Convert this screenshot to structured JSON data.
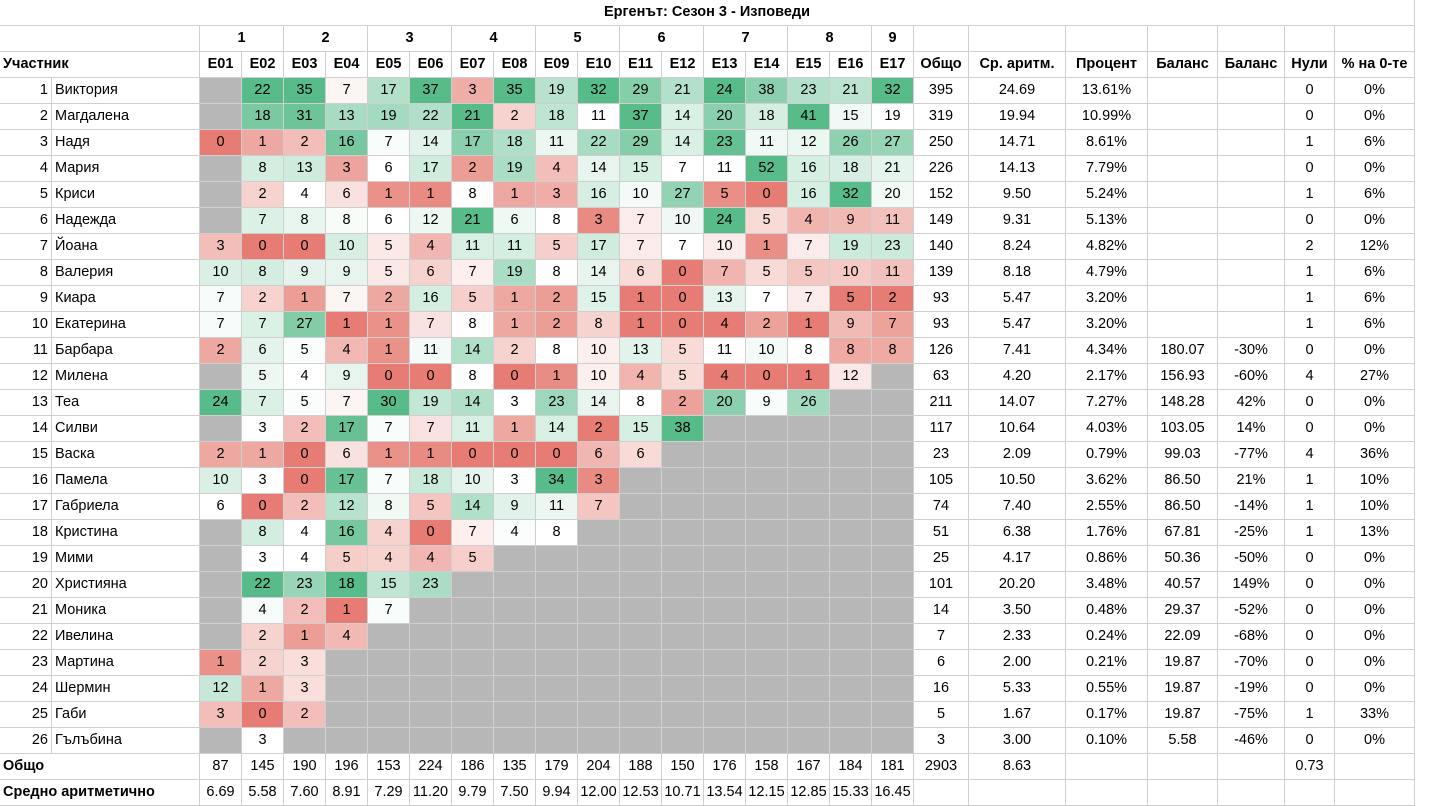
{
  "title": "Ергенът: Сезон 3 - Изповеди",
  "colors": {
    "absent": "#b7b7b7",
    "high": "#57bb8a",
    "mid": "#ffffff",
    "low": "#e67c73"
  },
  "week_groups": [
    {
      "label": "1",
      "span": 2
    },
    {
      "label": "2",
      "span": 2
    },
    {
      "label": "3",
      "span": 2
    },
    {
      "label": "4",
      "span": 2
    },
    {
      "label": "5",
      "span": 2
    },
    {
      "label": "6",
      "span": 2
    },
    {
      "label": "7",
      "span": 2
    },
    {
      "label": "8",
      "span": 2
    },
    {
      "label": "9",
      "span": 1
    }
  ],
  "headers": {
    "participant": "Участник",
    "episodes": [
      "E01",
      "E02",
      "E03",
      "E04",
      "E05",
      "E06",
      "E07",
      "E08",
      "E09",
      "E10",
      "E11",
      "E12",
      "E13",
      "E14",
      "E15",
      "E16",
      "E17"
    ],
    "total": "Общо",
    "avg": "Ср. аритм.",
    "percent": "Процент",
    "balance1": "Баланс",
    "balance2": "Баланс",
    "zeros": "Нули",
    "zero_pct": "% на 0-те"
  },
  "rows": [
    {
      "num": "1",
      "name": "Виктория",
      "eps": [
        null,
        22,
        35,
        7,
        17,
        37,
        3,
        35,
        19,
        32,
        29,
        21,
        24,
        38,
        23,
        21,
        32
      ],
      "total": "395",
      "avg": "24.69",
      "percent": "13.61%",
      "bal1": "",
      "bal2": "",
      "zeros": "0",
      "zero_pct": "0%"
    },
    {
      "num": "2",
      "name": "Магдалена",
      "eps": [
        null,
        18,
        31,
        13,
        19,
        22,
        21,
        2,
        18,
        11,
        37,
        14,
        20,
        18,
        41,
        15,
        19
      ],
      "total": "319",
      "avg": "19.94",
      "percent": "10.99%",
      "bal1": "",
      "bal2": "",
      "zeros": "0",
      "zero_pct": "0%"
    },
    {
      "num": "3",
      "name": "Надя",
      "eps": [
        0,
        1,
        2,
        16,
        7,
        14,
        17,
        18,
        11,
        22,
        29,
        14,
        23,
        11,
        12,
        26,
        27
      ],
      "total": "250",
      "avg": "14.71",
      "percent": "8.61%",
      "bal1": "",
      "bal2": "",
      "zeros": "1",
      "zero_pct": "6%"
    },
    {
      "num": "4",
      "name": "Мария",
      "eps": [
        null,
        8,
        13,
        3,
        6,
        17,
        2,
        19,
        4,
        14,
        15,
        7,
        11,
        52,
        16,
        18,
        21
      ],
      "total": "226",
      "avg": "14.13",
      "percent": "7.79%",
      "bal1": "",
      "bal2": "",
      "zeros": "0",
      "zero_pct": "0%"
    },
    {
      "num": "5",
      "name": "Криси",
      "eps": [
        null,
        2,
        4,
        6,
        1,
        1,
        8,
        1,
        3,
        16,
        10,
        27,
        5,
        0,
        16,
        32,
        20
      ],
      "total": "152",
      "avg": "9.50",
      "percent": "5.24%",
      "bal1": "",
      "bal2": "",
      "zeros": "1",
      "zero_pct": "6%"
    },
    {
      "num": "6",
      "name": "Надежда",
      "eps": [
        null,
        7,
        8,
        8,
        6,
        12,
        21,
        6,
        8,
        3,
        7,
        10,
        24,
        5,
        4,
        9,
        11
      ],
      "total": "149",
      "avg": "9.31",
      "percent": "5.13%",
      "bal1": "",
      "bal2": "",
      "zeros": "0",
      "zero_pct": "0%"
    },
    {
      "num": "7",
      "name": "Йоана",
      "eps": [
        3,
        0,
        0,
        10,
        5,
        4,
        11,
        11,
        5,
        17,
        7,
        7,
        10,
        1,
        7,
        19,
        23
      ],
      "total": "140",
      "avg": "8.24",
      "percent": "4.82%",
      "bal1": "",
      "bal2": "",
      "zeros": "2",
      "zero_pct": "12%"
    },
    {
      "num": "8",
      "name": "Валерия",
      "eps": [
        10,
        8,
        9,
        9,
        5,
        6,
        7,
        19,
        8,
        14,
        6,
        0,
        7,
        5,
        5,
        10,
        11
      ],
      "total": "139",
      "avg": "8.18",
      "percent": "4.79%",
      "bal1": "",
      "bal2": "",
      "zeros": "1",
      "zero_pct": "6%"
    },
    {
      "num": "9",
      "name": "Киара",
      "eps": [
        7,
        2,
        1,
        7,
        2,
        16,
        5,
        1,
        2,
        15,
        1,
        0,
        13,
        7,
        7,
        5,
        2
      ],
      "total": "93",
      "avg": "5.47",
      "percent": "3.20%",
      "bal1": "",
      "bal2": "",
      "zeros": "1",
      "zero_pct": "6%"
    },
    {
      "num": "10",
      "name": "Екатерина",
      "eps": [
        7,
        7,
        27,
        1,
        1,
        7,
        8,
        1,
        2,
        8,
        1,
        0,
        4,
        2,
        1,
        9,
        7
      ],
      "total": "93",
      "avg": "5.47",
      "percent": "3.20%",
      "bal1": "",
      "bal2": "",
      "zeros": "1",
      "zero_pct": "6%"
    },
    {
      "num": "11",
      "name": "Барбара",
      "eps": [
        2,
        6,
        5,
        4,
        1,
        11,
        14,
        2,
        8,
        10,
        13,
        5,
        11,
        10,
        8,
        8,
        8
      ],
      "total": "126",
      "avg": "7.41",
      "percent": "4.34%",
      "bal1": "180.07",
      "bal2": "-30%",
      "zeros": "0",
      "zero_pct": "0%"
    },
    {
      "num": "12",
      "name": "Милена",
      "eps": [
        null,
        5,
        4,
        9,
        0,
        0,
        8,
        0,
        1,
        10,
        4,
        5,
        4,
        0,
        1,
        12,
        null
      ],
      "total": "63",
      "avg": "4.20",
      "percent": "2.17%",
      "bal1": "156.93",
      "bal2": "-60%",
      "zeros": "4",
      "zero_pct": "27%"
    },
    {
      "num": "13",
      "name": "Теа",
      "eps": [
        24,
        7,
        5,
        7,
        30,
        19,
        14,
        3,
        23,
        14,
        8,
        2,
        20,
        9,
        26,
        null,
        null
      ],
      "total": "211",
      "avg": "14.07",
      "percent": "7.27%",
      "bal1": "148.28",
      "bal2": "42%",
      "zeros": "0",
      "zero_pct": "0%"
    },
    {
      "num": "14",
      "name": "Силви",
      "eps": [
        null,
        3,
        2,
        17,
        7,
        7,
        11,
        1,
        14,
        2,
        15,
        38,
        null,
        null,
        null,
        null,
        null
      ],
      "total": "117",
      "avg": "10.64",
      "percent": "4.03%",
      "bal1": "103.05",
      "bal2": "14%",
      "zeros": "0",
      "zero_pct": "0%"
    },
    {
      "num": "15",
      "name": "Васка",
      "eps": [
        2,
        1,
        0,
        6,
        1,
        1,
        0,
        0,
        0,
        6,
        6,
        null,
        null,
        null,
        null,
        null,
        null
      ],
      "total": "23",
      "avg": "2.09",
      "percent": "0.79%",
      "bal1": "99.03",
      "bal2": "-77%",
      "zeros": "4",
      "zero_pct": "36%"
    },
    {
      "num": "16",
      "name": "Памела",
      "eps": [
        10,
        3,
        0,
        17,
        7,
        18,
        10,
        3,
        34,
        3,
        null,
        null,
        null,
        null,
        null,
        null,
        null
      ],
      "total": "105",
      "avg": "10.50",
      "percent": "3.62%",
      "bal1": "86.50",
      "bal2": "21%",
      "zeros": "1",
      "zero_pct": "10%"
    },
    {
      "num": "17",
      "name": "Габриела",
      "eps": [
        6,
        0,
        2,
        12,
        8,
        5,
        14,
        9,
        11,
        7,
        null,
        null,
        null,
        null,
        null,
        null,
        null
      ],
      "total": "74",
      "avg": "7.40",
      "percent": "2.55%",
      "bal1": "86.50",
      "bal2": "-14%",
      "zeros": "1",
      "zero_pct": "10%"
    },
    {
      "num": "18",
      "name": "Кристина",
      "eps": [
        null,
        8,
        4,
        16,
        4,
        0,
        7,
        4,
        8,
        null,
        null,
        null,
        null,
        null,
        null,
        null,
        null
      ],
      "total": "51",
      "avg": "6.38",
      "percent": "1.76%",
      "bal1": "67.81",
      "bal2": "-25%",
      "zeros": "1",
      "zero_pct": "13%"
    },
    {
      "num": "19",
      "name": "Мими",
      "eps": [
        null,
        3,
        4,
        5,
        4,
        4,
        5,
        null,
        null,
        null,
        null,
        null,
        null,
        null,
        null,
        null,
        null
      ],
      "total": "25",
      "avg": "4.17",
      "percent": "0.86%",
      "bal1": "50.36",
      "bal2": "-50%",
      "zeros": "0",
      "zero_pct": "0%"
    },
    {
      "num": "20",
      "name": "Християна",
      "eps": [
        null,
        22,
        23,
        18,
        15,
        23,
        null,
        null,
        null,
        null,
        null,
        null,
        null,
        null,
        null,
        null,
        null
      ],
      "total": "101",
      "avg": "20.20",
      "percent": "3.48%",
      "bal1": "40.57",
      "bal2": "149%",
      "zeros": "0",
      "zero_pct": "0%"
    },
    {
      "num": "21",
      "name": "Моника",
      "eps": [
        null,
        4,
        2,
        1,
        7,
        null,
        null,
        null,
        null,
        null,
        null,
        null,
        null,
        null,
        null,
        null,
        null
      ],
      "total": "14",
      "avg": "3.50",
      "percent": "0.48%",
      "bal1": "29.37",
      "bal2": "-52%",
      "zeros": "0",
      "zero_pct": "0%"
    },
    {
      "num": "22",
      "name": "Ивелина",
      "eps": [
        null,
        2,
        1,
        4,
        null,
        null,
        null,
        null,
        null,
        null,
        null,
        null,
        null,
        null,
        null,
        null,
        null
      ],
      "total": "7",
      "avg": "2.33",
      "percent": "0.24%",
      "bal1": "22.09",
      "bal2": "-68%",
      "zeros": "0",
      "zero_pct": "0%"
    },
    {
      "num": "23",
      "name": "Мартина",
      "eps": [
        1,
        2,
        3,
        null,
        null,
        null,
        null,
        null,
        null,
        null,
        null,
        null,
        null,
        null,
        null,
        null,
        null
      ],
      "total": "6",
      "avg": "2.00",
      "percent": "0.21%",
      "bal1": "19.87",
      "bal2": "-70%",
      "zeros": "0",
      "zero_pct": "0%"
    },
    {
      "num": "24",
      "name": "Шермин",
      "eps": [
        12,
        1,
        3,
        null,
        null,
        null,
        null,
        null,
        null,
        null,
        null,
        null,
        null,
        null,
        null,
        null,
        null
      ],
      "total": "16",
      "avg": "5.33",
      "percent": "0.55%",
      "bal1": "19.87",
      "bal2": "-19%",
      "zeros": "0",
      "zero_pct": "0%"
    },
    {
      "num": "25",
      "name": "Габи",
      "eps": [
        3,
        0,
        2,
        null,
        null,
        null,
        null,
        null,
        null,
        null,
        null,
        null,
        null,
        null,
        null,
        null,
        null
      ],
      "total": "5",
      "avg": "1.67",
      "percent": "0.17%",
      "bal1": "19.87",
      "bal2": "-75%",
      "zeros": "1",
      "zero_pct": "33%"
    },
    {
      "num": "26",
      "name": "Гълъбина",
      "eps": [
        null,
        3,
        null,
        null,
        null,
        null,
        null,
        null,
        null,
        null,
        null,
        null,
        null,
        null,
        null,
        null,
        null
      ],
      "total": "3",
      "avg": "3.00",
      "percent": "0.10%",
      "bal1": "5.58",
      "bal2": "-46%",
      "zeros": "0",
      "zero_pct": "0%"
    }
  ],
  "footer_total": {
    "label": "Общо",
    "eps": [
      "87",
      "145",
      "190",
      "196",
      "153",
      "224",
      "186",
      "135",
      "179",
      "204",
      "188",
      "150",
      "176",
      "158",
      "167",
      "184",
      "181"
    ],
    "total": "2903",
    "avg": "8.63",
    "zeros": "0.73"
  },
  "footer_avg": {
    "label": "Средно аритметично",
    "eps": [
      "6.69",
      "5.58",
      "7.60",
      "8.91",
      "7.29",
      "11.20",
      "9.79",
      "7.50",
      "9.94",
      "12.00",
      "12.53",
      "10.71",
      "13.54",
      "12.15",
      "12.85",
      "15.33",
      "16.45"
    ]
  }
}
